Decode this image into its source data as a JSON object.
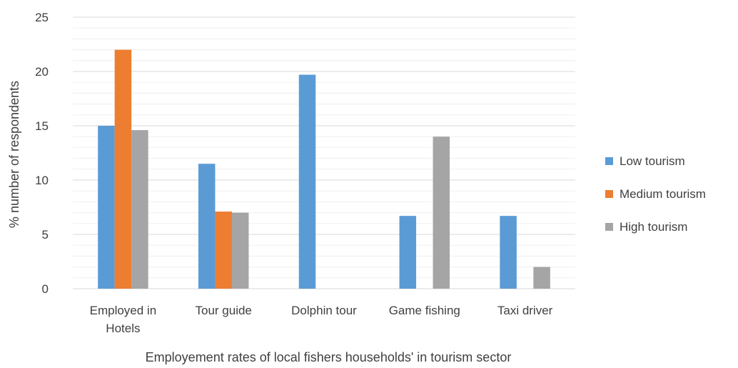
{
  "chart_data": {
    "type": "bar",
    "title": "",
    "xlabel": "Employement  rates of local fishers households' in tourism sector",
    "ylabel": "% number of respondents",
    "ylim": [
      0,
      25
    ],
    "yticks": [
      0,
      5,
      10,
      15,
      20,
      25
    ],
    "yticks_labels": [
      "0",
      "5",
      "10",
      "15",
      "20",
      "25"
    ],
    "grid": true,
    "legend_position": "right",
    "categories": [
      [
        "Employed in",
        "Hotels"
      ],
      [
        "Tour guide"
      ],
      [
        "Dolphin tour"
      ],
      [
        "Game fishing"
      ],
      [
        "Taxi driver"
      ]
    ],
    "series": [
      {
        "name": "Low tourism",
        "color": "#5B9BD5",
        "values": [
          15,
          11.5,
          19.7,
          6.7,
          6.7
        ]
      },
      {
        "name": "Medium tourism",
        "color": "#ED7D31",
        "values": [
          22,
          7.1,
          0,
          0,
          0
        ]
      },
      {
        "name": "High tourism",
        "color": "#A5A5A5",
        "values": [
          14.6,
          7,
          0,
          14,
          2
        ]
      }
    ]
  }
}
